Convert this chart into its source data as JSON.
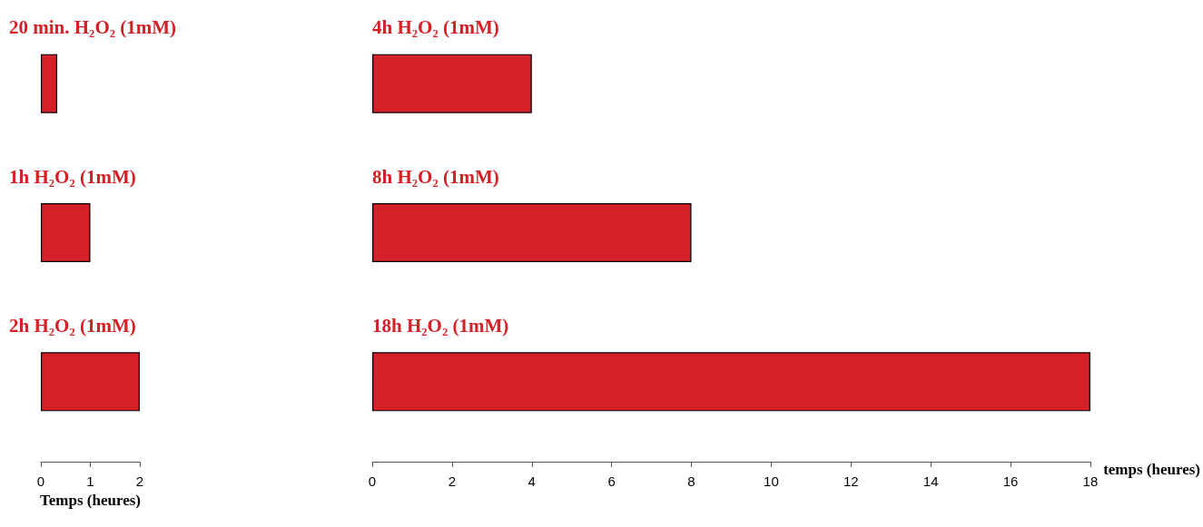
{
  "chart_data": [
    {
      "type": "bar",
      "orientation": "horizontal",
      "categories": [
        "20 min. H₂O₂ (1mM)",
        "1h H₂O₂ (1mM)",
        "2h H₂O₂ (1mM)"
      ],
      "values": [
        0.33,
        1,
        2
      ],
      "color": "#d42027",
      "xlim": [
        0,
        2
      ],
      "xticks": [
        0,
        1,
        2
      ],
      "xlabel": "Temps (heures)",
      "grid": false
    },
    {
      "type": "bar",
      "orientation": "horizontal",
      "categories": [
        "4h H₂O₂ (1mM)",
        "8h H₂O₂ (1mM)",
        "18h H₂O₂ (1mM)"
      ],
      "values": [
        4,
        8,
        18
      ],
      "color": "#d42027",
      "xlim": [
        0,
        18
      ],
      "xticks": [
        0,
        2,
        4,
        6,
        8,
        10,
        12,
        14,
        16,
        18
      ],
      "xlabel": "temps (heures)",
      "grid": false
    }
  ]
}
